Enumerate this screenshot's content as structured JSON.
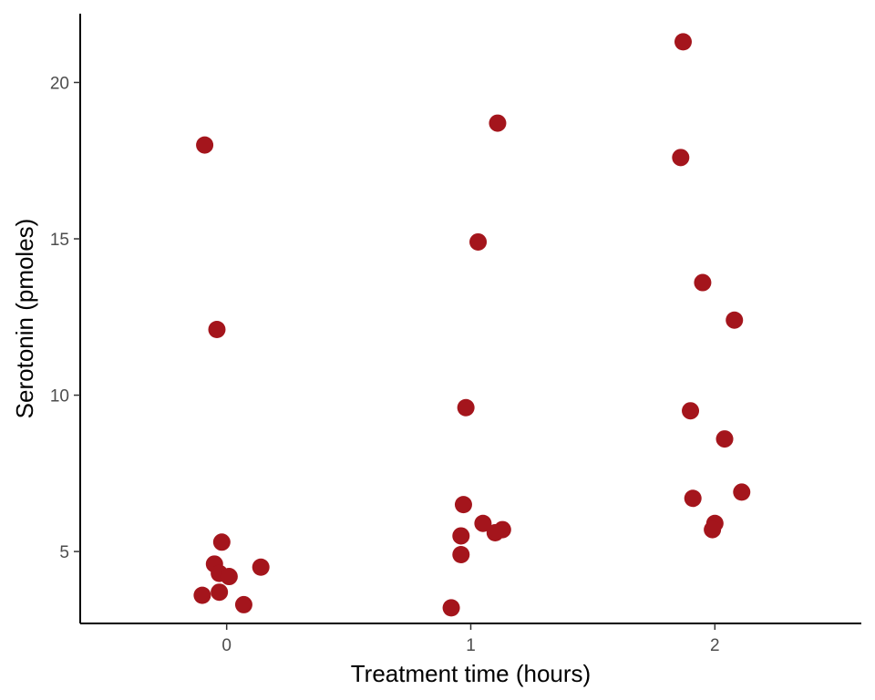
{
  "chart_data": {
    "type": "scatter",
    "title": "",
    "xlabel": "Treatment time (hours)",
    "ylabel": "Serotonin (pmoles)",
    "x_ticks": [
      "0",
      "1",
      "2"
    ],
    "y_ticks": [
      "5",
      "10",
      "15",
      "20"
    ],
    "xlim": [
      -0.6,
      2.6
    ],
    "ylim": [
      2.7,
      22.2
    ],
    "grid": false,
    "legend": "none",
    "point_color": "#a4151c",
    "series": [
      {
        "points": [
          {
            "x": 0,
            "y": 18.0
          },
          {
            "x": 0,
            "y": 12.1
          },
          {
            "x": 0,
            "y": 5.3
          },
          {
            "x": 0,
            "y": 4.6
          },
          {
            "x": 0,
            "y": 4.5
          },
          {
            "x": 0,
            "y": 4.3
          },
          {
            "x": 0,
            "y": 4.2
          },
          {
            "x": 0,
            "y": 3.7
          },
          {
            "x": 0,
            "y": 3.6
          },
          {
            "x": 0,
            "y": 3.3
          },
          {
            "x": 1,
            "y": 18.7
          },
          {
            "x": 1,
            "y": 14.9
          },
          {
            "x": 1,
            "y": 9.6
          },
          {
            "x": 1,
            "y": 6.5
          },
          {
            "x": 1,
            "y": 5.9
          },
          {
            "x": 1,
            "y": 5.7
          },
          {
            "x": 1,
            "y": 5.6
          },
          {
            "x": 1,
            "y": 5.5
          },
          {
            "x": 1,
            "y": 4.9
          },
          {
            "x": 1,
            "y": 3.2
          },
          {
            "x": 2,
            "y": 21.3
          },
          {
            "x": 2,
            "y": 17.6
          },
          {
            "x": 2,
            "y": 13.6
          },
          {
            "x": 2,
            "y": 12.4
          },
          {
            "x": 2,
            "y": 9.5
          },
          {
            "x": 2,
            "y": 8.6
          },
          {
            "x": 2,
            "y": 6.9
          },
          {
            "x": 2,
            "y": 6.7
          },
          {
            "x": 2,
            "y": 5.9
          },
          {
            "x": 2,
            "y": 5.7
          }
        ]
      }
    ]
  }
}
